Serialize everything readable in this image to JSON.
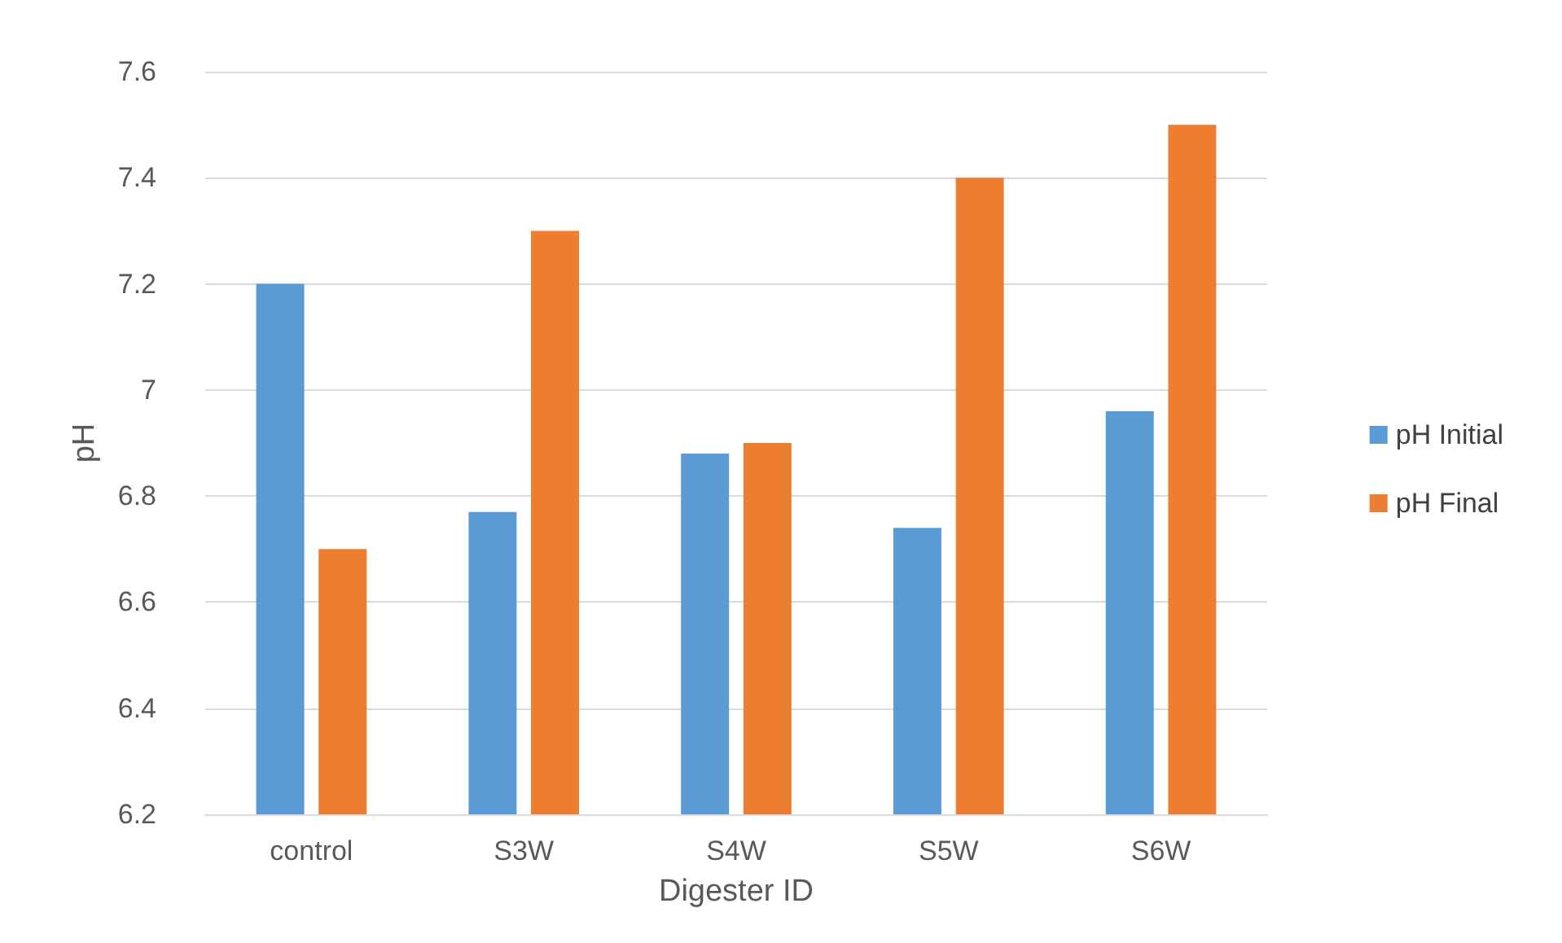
{
  "chart_data": {
    "type": "bar",
    "xlabel": "Digester ID",
    "ylabel": "pH",
    "categories": [
      "control",
      "S3W",
      "S4W",
      "S5W",
      "S6W"
    ],
    "series": [
      {
        "name": "pH Initial",
        "color": "#5b9bd5",
        "values": [
          7.2,
          6.77,
          6.88,
          6.74,
          6.96
        ]
      },
      {
        "name": "pH Final",
        "color": "#ed7d31",
        "values": [
          6.7,
          7.3,
          6.9,
          7.4,
          7.5
        ]
      }
    ],
    "ylim": [
      6.2,
      7.6
    ],
    "yticks": [
      6.2,
      6.4,
      6.6,
      6.8,
      7,
      7.2,
      7.4,
      7.6
    ],
    "grid": "y",
    "legend": "right"
  }
}
